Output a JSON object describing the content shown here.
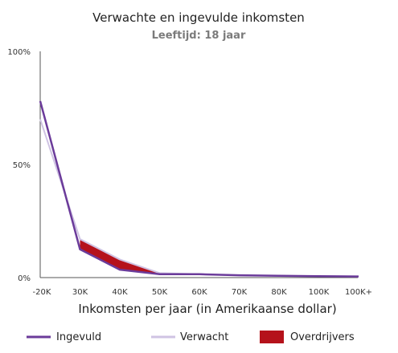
{
  "chart_data": {
    "type": "line",
    "title": "Verwachte en ingevulde inkomsten",
    "subtitle": "Leeftijd: 18 jaar",
    "xlabel": "Inkomsten per jaar (in Amerikaanse dollar)",
    "ylabel": "",
    "categories": [
      "-20K",
      "30K",
      "40K",
      "50K",
      "60K",
      "70K",
      "80K",
      "100K",
      "100K+"
    ],
    "y_ticks": [
      "0%",
      "50%",
      "100%"
    ],
    "ylim": [
      0,
      100
    ],
    "grid": false,
    "legend_position": "bottom",
    "series": [
      {
        "name": "Ingevuld",
        "color": "#6b3b9a",
        "values": [
          78,
          12.5,
          3.5,
          1.5,
          1.5,
          1,
          0.8,
          0.6,
          0.5
        ]
      },
      {
        "name": "Verwacht",
        "color": "#cfc3e3",
        "values": [
          70,
          17,
          8,
          2,
          1.5,
          1,
          0.8,
          0.6,
          0.5
        ]
      }
    ],
    "band": {
      "name": "Overdrijvers",
      "color": "#b5121b",
      "upper": [
        null,
        17,
        8,
        2
      ],
      "lower": [
        null,
        12.5,
        3.5,
        1.5
      ]
    }
  }
}
